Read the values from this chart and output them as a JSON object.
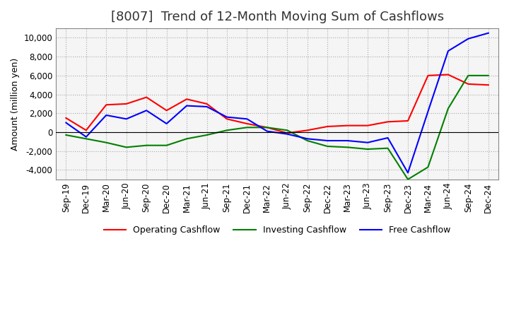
{
  "title": "[8007]  Trend of 12-Month Moving Sum of Cashflows",
  "ylabel": "Amount (million yen)",
  "ylim": [
    -5000,
    11000
  ],
  "yticks": [
    -4000,
    -2000,
    0,
    2000,
    4000,
    6000,
    8000,
    10000
  ],
  "x_labels": [
    "Sep-19",
    "Dec-19",
    "Mar-20",
    "Jun-20",
    "Sep-20",
    "Dec-20",
    "Mar-21",
    "Jun-21",
    "Sep-21",
    "Dec-21",
    "Mar-22",
    "Jun-22",
    "Sep-22",
    "Dec-22",
    "Mar-23",
    "Jun-23",
    "Sep-23",
    "Dec-23",
    "Mar-24",
    "Jun-24",
    "Sep-24",
    "Dec-24"
  ],
  "operating": [
    1500,
    200,
    2900,
    3000,
    3700,
    2300,
    3500,
    3000,
    1400,
    900,
    500,
    -100,
    200,
    600,
    700,
    700,
    1100,
    1200,
    6000,
    6100,
    5100,
    5000
  ],
  "investing": [
    -300,
    -700,
    -1100,
    -1600,
    -1400,
    -1400,
    -700,
    -300,
    200,
    500,
    500,
    200,
    -900,
    -1500,
    -1600,
    -1800,
    -1700,
    -5000,
    -3700,
    2500,
    6000,
    6000
  ],
  "free": [
    1000,
    -500,
    1800,
    1400,
    2300,
    900,
    2800,
    2700,
    1600,
    1400,
    100,
    -200,
    -700,
    -900,
    -900,
    -1100,
    -600,
    -4300,
    2200,
    8600,
    9900,
    10500
  ],
  "operating_color": "#ff0000",
  "investing_color": "#008000",
  "free_color": "#0000ff",
  "plot_bg_color": "#f5f5f5",
  "background_color": "#ffffff",
  "grid_color": "#aaaaaa",
  "title_fontsize": 13,
  "label_fontsize": 9,
  "tick_fontsize": 8.5
}
